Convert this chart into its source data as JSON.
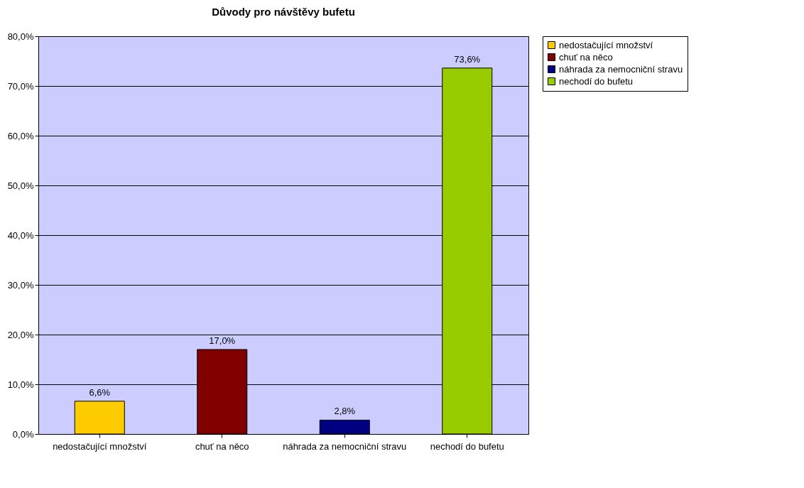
{
  "chart_data": {
    "type": "bar",
    "title": "Důvody pro návštěvy bufetu",
    "categories": [
      "nedostačující množství",
      "chuť na něco",
      "náhrada za nemocniční stravu",
      "nechodí do bufetu"
    ],
    "series": [
      {
        "name": "nedostačující množství",
        "color": "#ffcc00",
        "values": [
          6.6,
          null,
          null,
          null
        ],
        "value_labels": [
          "6,6%",
          null,
          null,
          null
        ]
      },
      {
        "name": "chuť na něco",
        "color": "#800000",
        "values": [
          null,
          17.0,
          null,
          null
        ],
        "value_labels": [
          null,
          "17,0%",
          null,
          null
        ]
      },
      {
        "name": "náhrada za nemocniční stravu",
        "color": "#000080",
        "values": [
          null,
          null,
          2.8,
          null
        ],
        "value_labels": [
          null,
          null,
          "2,8%",
          null
        ]
      },
      {
        "name": "nechodí do bufetu",
        "color": "#99cc00",
        "values": [
          null,
          null,
          null,
          73.6
        ],
        "value_labels": [
          null,
          null,
          null,
          "73,6%"
        ]
      }
    ],
    "ylim": [
      0,
      80
    ],
    "yticks": [
      {
        "value": 0,
        "label": "0,0%"
      },
      {
        "value": 10,
        "label": "10,0%"
      },
      {
        "value": 20,
        "label": "20,0%"
      },
      {
        "value": 30,
        "label": "30,0%"
      },
      {
        "value": 40,
        "label": "40,0%"
      },
      {
        "value": 50,
        "label": "50,0%"
      },
      {
        "value": 60,
        "label": "60,0%"
      },
      {
        "value": 70,
        "label": "70,0%"
      },
      {
        "value": 80,
        "label": "80,0%"
      }
    ],
    "grid": "y",
    "legend": "right"
  }
}
